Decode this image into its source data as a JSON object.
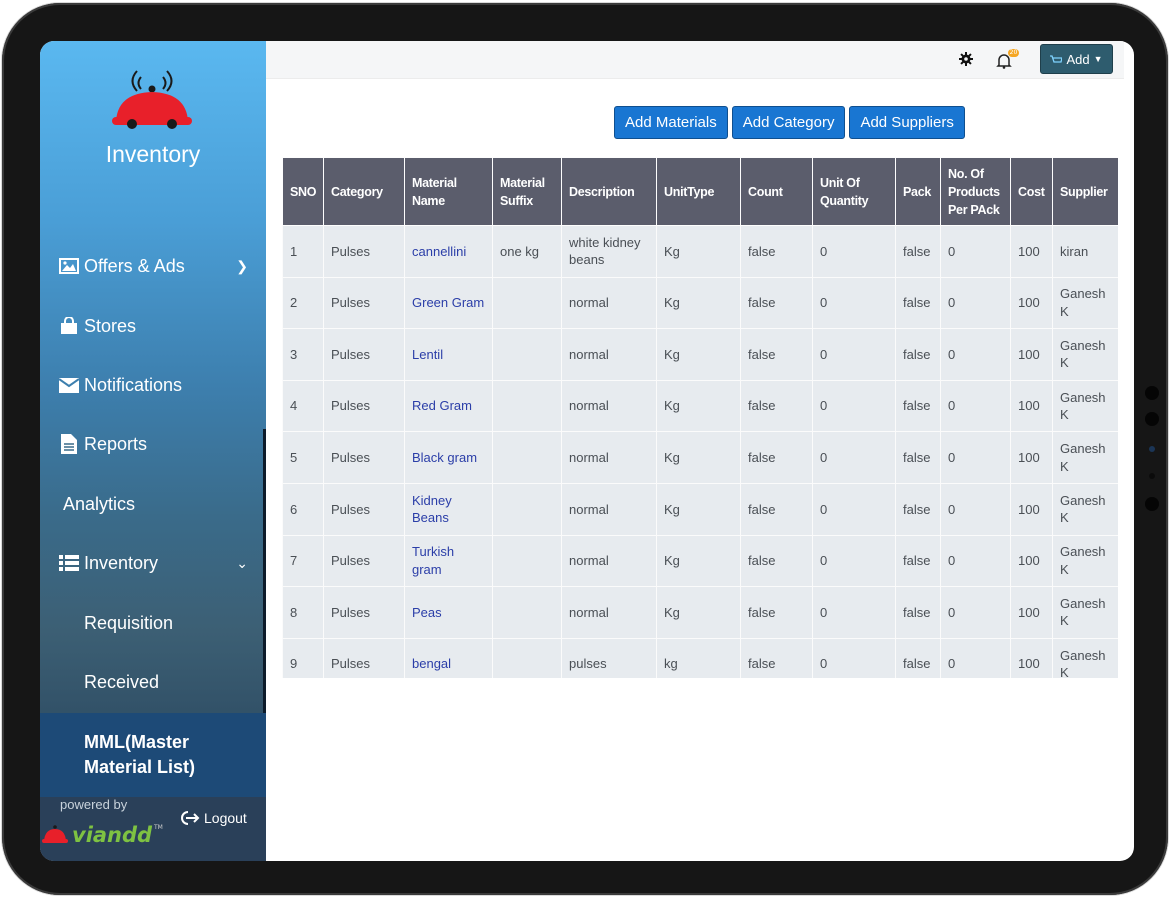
{
  "sidebar": {
    "brand": "Inventory",
    "items": [
      {
        "label": "Offers & Ads",
        "icon": "image-icon"
      },
      {
        "label": "Stores",
        "icon": "shopping-bag-icon"
      },
      {
        "label": "Notifications",
        "icon": "envelope-icon"
      },
      {
        "label": "Reports",
        "icon": "file-icon"
      },
      {
        "label": "Analytics",
        "icon": ""
      },
      {
        "label": "Inventory",
        "icon": "list-icon"
      }
    ],
    "subitems": [
      "Requisition",
      "Received"
    ],
    "active": "MML(Master Material List)",
    "powered_by": "powered by",
    "logout": "Logout"
  },
  "topbar": {
    "add_label": "Add",
    "notification_count": "20"
  },
  "actions": [
    "Add Materials",
    "Add Category",
    "Add Suppliers"
  ],
  "table": {
    "columns": [
      "SNO",
      "Category",
      "Material Name",
      "Material Suffix",
      "Description",
      "UnitType",
      "Count",
      "Unit Of Quantity",
      "Pack",
      "No. Of Products Per PAck",
      "Cost",
      "Supplier"
    ],
    "rows": [
      [
        "1",
        "Pulses",
        "cannellini",
        "one kg",
        "white kidney beans",
        "Kg",
        "false",
        "0",
        "false",
        "0",
        "100",
        "kiran"
      ],
      [
        "2",
        "Pulses",
        "Green Gram",
        "",
        "normal",
        "Kg",
        "false",
        "0",
        "false",
        "0",
        "100",
        "Ganesh K"
      ],
      [
        "3",
        "Pulses",
        "Lentil",
        "",
        "normal",
        "Kg",
        "false",
        "0",
        "false",
        "0",
        "100",
        "Ganesh K"
      ],
      [
        "4",
        "Pulses",
        "Red Gram",
        "",
        "normal",
        "Kg",
        "false",
        "0",
        "false",
        "0",
        "100",
        "Ganesh K"
      ],
      [
        "5",
        "Pulses",
        "Black gram",
        "",
        "normal",
        "Kg",
        "false",
        "0",
        "false",
        "0",
        "100",
        "Ganesh K"
      ],
      [
        "6",
        "Pulses",
        "Kidney Beans",
        "",
        "normal",
        "Kg",
        "false",
        "0",
        "false",
        "0",
        "100",
        "Ganesh K"
      ],
      [
        "7",
        "Pulses",
        "Turkish gram",
        "",
        "normal",
        "Kg",
        "false",
        "0",
        "false",
        "0",
        "100",
        "Ganesh K"
      ],
      [
        "8",
        "Pulses",
        "Peas",
        "",
        "normal",
        "Kg",
        "false",
        "0",
        "false",
        "0",
        "100",
        "Ganesh K"
      ],
      [
        "9",
        "Pulses",
        "bengal",
        "",
        "pulses",
        "kg",
        "false",
        "0",
        "false",
        "0",
        "100",
        "Ganesh K"
      ]
    ]
  },
  "colors": {
    "header_bg": "#5b5d6c",
    "cell_bg": "#e7ebef",
    "link": "#2b3ea8",
    "button": "#1976d2",
    "active_nav": "#1d4a77"
  }
}
